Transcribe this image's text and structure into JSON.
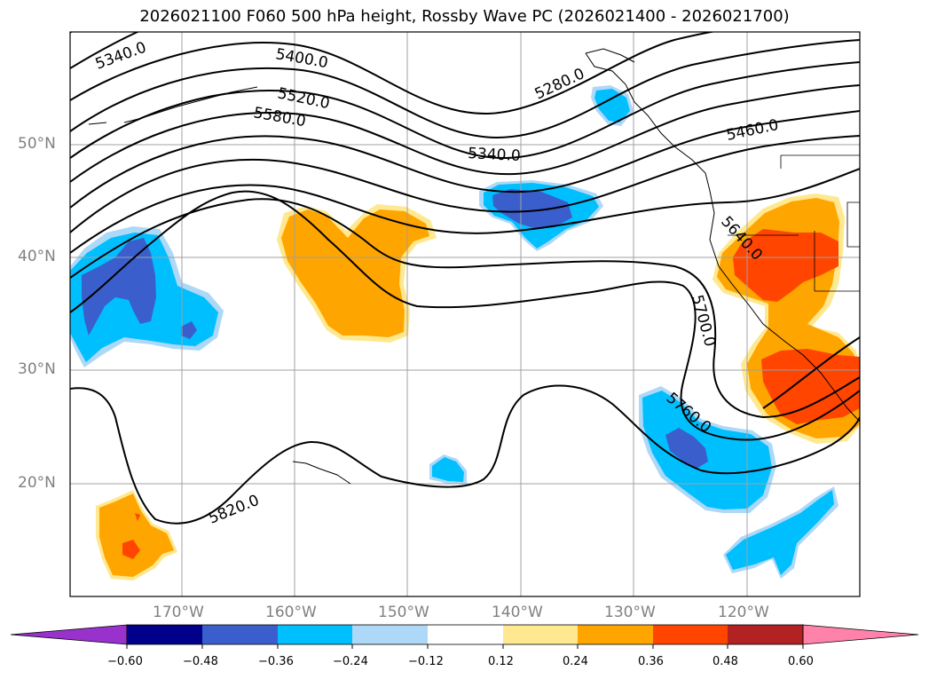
{
  "title": "2026021100 F060 500 hPa height, Rossby Wave PC (2026021400 - 2026021700)",
  "lat_labels": [
    "50°N",
    "40°N",
    "30°N",
    "20°N"
  ],
  "lon_labels": [
    "170°W",
    "160°W",
    "150°W",
    "140°W",
    "130°W",
    "120°W"
  ],
  "contour_labels": [
    "5340.0",
    "5400.0",
    "5520.0",
    "5580.0",
    "5280.0",
    "5340.0",
    "5460.0",
    "5640.0",
    "5700.0",
    "5760.0",
    "5820.0"
  ],
  "colorbar": {
    "ticks": [
      "−0.60",
      "−0.48",
      "−0.36",
      "−0.24",
      "−0.12",
      "0.12",
      "0.24",
      "0.36",
      "0.48",
      "0.60"
    ],
    "colors": [
      "#9932cc",
      "#00008b",
      "#3a5fcd",
      "#00bfff",
      "#add8f7",
      "#ffffff",
      "#ffe88f",
      "#ffa500",
      "#ff4500",
      "#b22222",
      "#ff82ab"
    ]
  },
  "colors": {
    "deep_blue": "#3a5fcd",
    "blue": "#00bfff",
    "light_blue": "#add8f7",
    "yellow": "#ffe88f",
    "orange": "#ffa500",
    "red": "#ff4500",
    "contour": "#000000",
    "grid": "#a0a0a0",
    "axis_label": "#808080"
  }
}
